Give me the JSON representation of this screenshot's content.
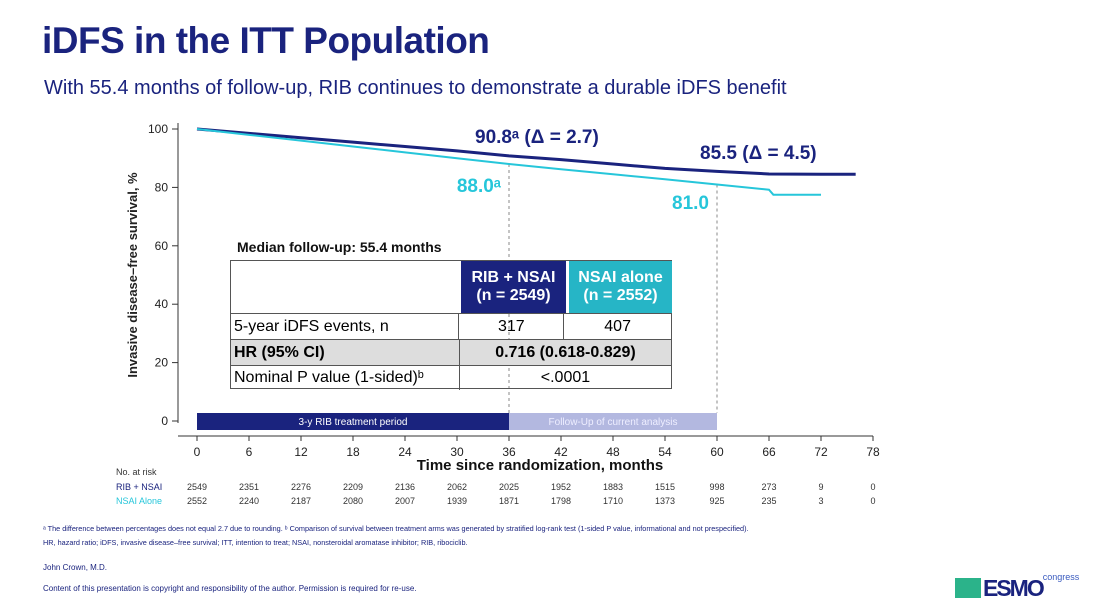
{
  "title": "iDFS in the ITT Population",
  "subtitle": "With 55.4 months of follow-up, RIB continues to demonstrate a durable iDFS benefit",
  "chart_data": {
    "type": "line",
    "xlabel": "Time since randomization, months",
    "ylabel": "Invasive disease–free survival, %",
    "xlim": [
      0,
      78
    ],
    "ylim": [
      0,
      100
    ],
    "xticks": [
      0,
      6,
      12,
      18,
      24,
      30,
      36,
      42,
      48,
      54,
      60,
      66,
      72,
      78
    ],
    "yticks": [
      0,
      20,
      40,
      60,
      80,
      100
    ],
    "grid": false,
    "colors": {
      "rib": "#1a237e",
      "nsai": "#26c6da"
    },
    "series": [
      {
        "name": "RIB + NSAI",
        "x": [
          0,
          6,
          12,
          18,
          24,
          30,
          36,
          42,
          48,
          54,
          60,
          66,
          72,
          76
        ],
        "y": [
          100,
          98.5,
          97,
          95.5,
          94,
          92.5,
          90.8,
          89.5,
          88,
          86.5,
          85.5,
          84.6,
          84.5,
          84.5
        ]
      },
      {
        "name": "NSAI Alone",
        "x": [
          0,
          6,
          12,
          18,
          24,
          30,
          36,
          42,
          48,
          54,
          60,
          66,
          66.5,
          72
        ],
        "y": [
          100,
          98,
          96,
          94,
          92,
          90,
          88,
          86.2,
          84.5,
          82.8,
          81,
          79.2,
          77.5,
          77.5
        ]
      }
    ],
    "annotations": [
      {
        "label": "90.8ᵃ (Δ = 2.7)",
        "series": "RIB + NSAI",
        "x": 36,
        "y": 90.8
      },
      {
        "label": "88.0ᵃ",
        "series": "NSAI Alone",
        "x": 36,
        "y": 88.0
      },
      {
        "label": "85.5 (Δ = 4.5)",
        "series": "RIB + NSAI",
        "x": 60,
        "y": 85.5
      },
      {
        "label": "81.0",
        "series": "NSAI Alone",
        "x": 60,
        "y": 81.0
      }
    ],
    "period_bars": [
      {
        "label": "3-y RIB treatment period",
        "from": 0,
        "to": 36,
        "color": "#1a237e"
      },
      {
        "label": "Follow-Up of current analysis",
        "from": 36,
        "to": 60,
        "color": "#b3b8e0"
      }
    ]
  },
  "table": {
    "caption": "Median follow-up: 55.4 months",
    "col1_line1": "RIB + NSAI",
    "col1_line2": "(n = 2549)",
    "col2_line1": "NSAI alone",
    "col2_line2": "(n = 2552)",
    "rows": [
      {
        "label": "5-year iDFS events, n",
        "v1": "317",
        "v2": "407"
      },
      {
        "label": "HR (95% CI)",
        "merged": "0.716 (0.618-0.829)"
      },
      {
        "label": "Nominal P value (1-sided)ᵇ",
        "merged": "<.0001"
      }
    ]
  },
  "at_risk": {
    "header": "No. at risk",
    "rows": [
      {
        "label": "RIB + NSAI",
        "values": [
          "2549",
          "2351",
          "2276",
          "2209",
          "2136",
          "2062",
          "2025",
          "1952",
          "1883",
          "1515",
          "998",
          "273",
          "9",
          "0"
        ]
      },
      {
        "label": "NSAI Alone",
        "values": [
          "2552",
          "2240",
          "2187",
          "2080",
          "2007",
          "1939",
          "1871",
          "1798",
          "1710",
          "1373",
          "925",
          "235",
          "3",
          "0"
        ]
      }
    ]
  },
  "footnotes": {
    "line1": "ᵃ The difference between percentages does not equal 2.7 due to rounding. ᵇ Comparison of survival between treatment arms was generated by stratified log-rank test (1-sided P value, informational and not prespecified).",
    "line2": "HR, hazard ratio; iDFS, invasive disease–free survival; ITT, intention to treat; NSAI, nonsteroidal aromatase inhibitor; RIB, ribociclib.",
    "author": "John Crown, M.D.",
    "copyright": "Content of this presentation is copyright and responsibility of the author. Permission is required for re-use."
  },
  "logo": {
    "text": "ESMO",
    "sup": "congress"
  }
}
